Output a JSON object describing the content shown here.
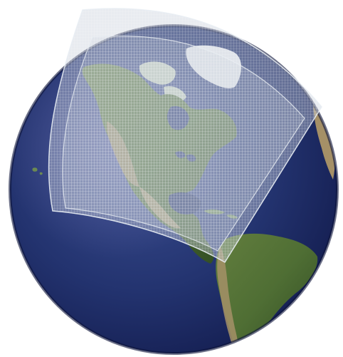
{
  "scene": {
    "subject": "globe-with-regional-model-grid",
    "colors": {
      "background": "#ffffff",
      "ocean_deep": "#101848",
      "ocean_mid": "#23336f",
      "ocean_light": "#3b4f92",
      "land_green": "#4f6e34",
      "land_dark_green": "#2f4a22",
      "land_tan": "#a59067",
      "land_light": "#c9b48d",
      "ice": "#f1f3f5",
      "grid_fill": "#c7d0db",
      "grid_line": "#ffffff"
    }
  }
}
